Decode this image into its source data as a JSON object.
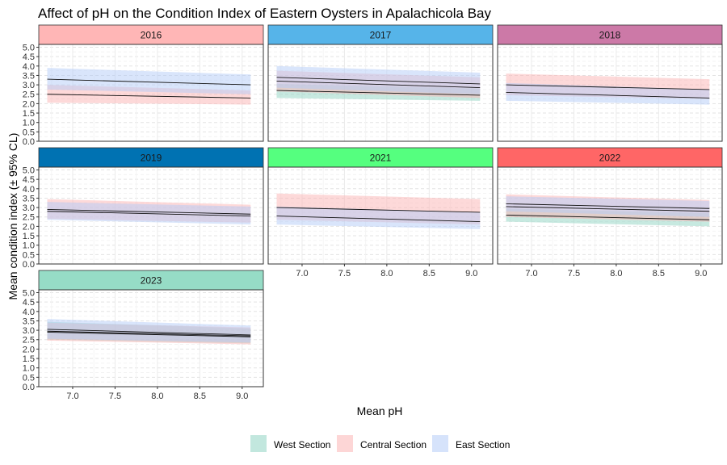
{
  "chart_data": {
    "type": "line",
    "title": "Affect of pH on the Condition Index of Eastern Oysters in Apalachicola Bay",
    "xlabel": "Mean pH",
    "ylabel": "Mean condition index (± 95% CL)",
    "xlim": [
      6.6,
      9.25
    ],
    "ylim": [
      0,
      5.15
    ],
    "xticks": [
      "7.0",
      "7.5",
      "8.0",
      "8.5",
      "9.0"
    ],
    "yticks": [
      "0.0",
      "0.5",
      "1.0",
      "1.5",
      "2.0",
      "2.5",
      "3.0",
      "3.5",
      "4.0",
      "4.5",
      "5.0"
    ],
    "legend": [
      {
        "name": "West Section",
        "color": "#8fd4c2"
      },
      {
        "name": "Central Section",
        "color": "#fbb4b4"
      },
      {
        "name": "East Section",
        "color": "#b4ccf7"
      }
    ],
    "panels": [
      {
        "year": "2016",
        "strip_color": "#ffb6b6",
        "series": [
          {
            "name": "Central Section",
            "x": [
              6.7,
              9.1
            ],
            "fit": [
              2.5,
              2.3
            ],
            "lower": [
              2.05,
              1.95
            ],
            "upper": [
              3.0,
              2.7
            ]
          },
          {
            "name": "East Section",
            "x": [
              6.7,
              9.1
            ],
            "fit": [
              3.3,
              3.0
            ],
            "lower": [
              2.75,
              2.5
            ],
            "upper": [
              3.9,
              3.55
            ]
          }
        ]
      },
      {
        "year": "2017",
        "strip_color": "#56b4e9",
        "series": [
          {
            "name": "West Section",
            "x": [
              6.7,
              9.1
            ],
            "fit": [
              2.7,
              2.45
            ],
            "lower": [
              2.3,
              2.15
            ],
            "upper": [
              3.05,
              2.8
            ]
          },
          {
            "name": "Central Section",
            "x": [
              6.7,
              9.1
            ],
            "fit": [
              3.2,
              2.85
            ],
            "lower": [
              2.65,
              2.3
            ],
            "upper": [
              3.75,
              3.4
            ]
          },
          {
            "name": "East Section",
            "x": [
              6.7,
              9.1
            ],
            "fit": [
              3.4,
              3.05
            ],
            "lower": [
              2.85,
              2.5
            ],
            "upper": [
              4.0,
              3.65
            ]
          }
        ]
      },
      {
        "year": "2018",
        "strip_color": "#cc79a7",
        "series": [
          {
            "name": "Central Section",
            "x": [
              6.7,
              9.1
            ],
            "fit": [
              3.0,
              2.75
            ],
            "lower": [
              2.45,
              2.25
            ],
            "upper": [
              3.6,
              3.3
            ]
          },
          {
            "name": "East Section",
            "x": [
              6.7,
              9.1
            ],
            "fit": [
              2.6,
              2.3
            ],
            "lower": [
              2.15,
              1.95
            ],
            "upper": [
              3.1,
              2.75
            ]
          }
        ]
      },
      {
        "year": "2019",
        "strip_color": "#0072b2",
        "series": [
          {
            "name": "Central Section",
            "x": [
              6.7,
              9.1
            ],
            "fit": [
              2.9,
              2.65
            ],
            "lower": [
              2.4,
              2.2
            ],
            "upper": [
              3.45,
              3.15
            ]
          },
          {
            "name": "East Section",
            "x": [
              6.7,
              9.1
            ],
            "fit": [
              2.8,
              2.55
            ],
            "lower": [
              2.35,
              2.1
            ],
            "upper": [
              3.3,
              3.05
            ]
          }
        ]
      },
      {
        "year": "2021",
        "strip_color": "#55ff7f",
        "series": [
          {
            "name": "Central Section",
            "x": [
              6.7,
              9.1
            ],
            "fit": [
              3.0,
              2.75
            ],
            "lower": [
              2.35,
              2.1
            ],
            "upper": [
              3.75,
              3.45
            ]
          },
          {
            "name": "East Section",
            "x": [
              6.7,
              9.1
            ],
            "fit": [
              2.55,
              2.25
            ],
            "lower": [
              2.1,
              1.85
            ],
            "upper": [
              3.05,
              2.75
            ]
          }
        ]
      },
      {
        "year": "2022",
        "strip_color": "#ff6666",
        "series": [
          {
            "name": "West Section",
            "x": [
              6.7,
              9.1
            ],
            "fit": [
              2.6,
              2.35
            ],
            "lower": [
              2.25,
              2.0
            ],
            "upper": [
              2.95,
              2.7
            ]
          },
          {
            "name": "Central Section",
            "x": [
              6.7,
              9.1
            ],
            "fit": [
              3.05,
              2.8
            ],
            "lower": [
              2.5,
              2.25
            ],
            "upper": [
              3.7,
              3.4
            ]
          },
          {
            "name": "East Section",
            "x": [
              6.7,
              9.1
            ],
            "fit": [
              3.2,
              2.95
            ],
            "lower": [
              2.8,
              2.5
            ],
            "upper": [
              3.6,
              3.35
            ]
          }
        ]
      },
      {
        "year": "2023",
        "strip_color": "#96dcc6",
        "series": [
          {
            "name": "West Section",
            "x": [
              6.7,
              9.1
            ],
            "fit": [
              2.95,
              2.7
            ],
            "lower": [
              2.5,
              2.3
            ],
            "upper": [
              3.45,
              3.1
            ]
          },
          {
            "name": "Central Section",
            "x": [
              6.7,
              9.1
            ],
            "fit": [
              2.9,
              2.65
            ],
            "lower": [
              2.45,
              2.25
            ],
            "upper": [
              3.4,
              3.15
            ]
          },
          {
            "name": "East Section",
            "x": [
              6.7,
              9.1
            ],
            "fit": [
              3.05,
              2.75
            ],
            "lower": [
              2.55,
              2.35
            ],
            "upper": [
              3.6,
              3.25
            ]
          }
        ]
      }
    ]
  }
}
